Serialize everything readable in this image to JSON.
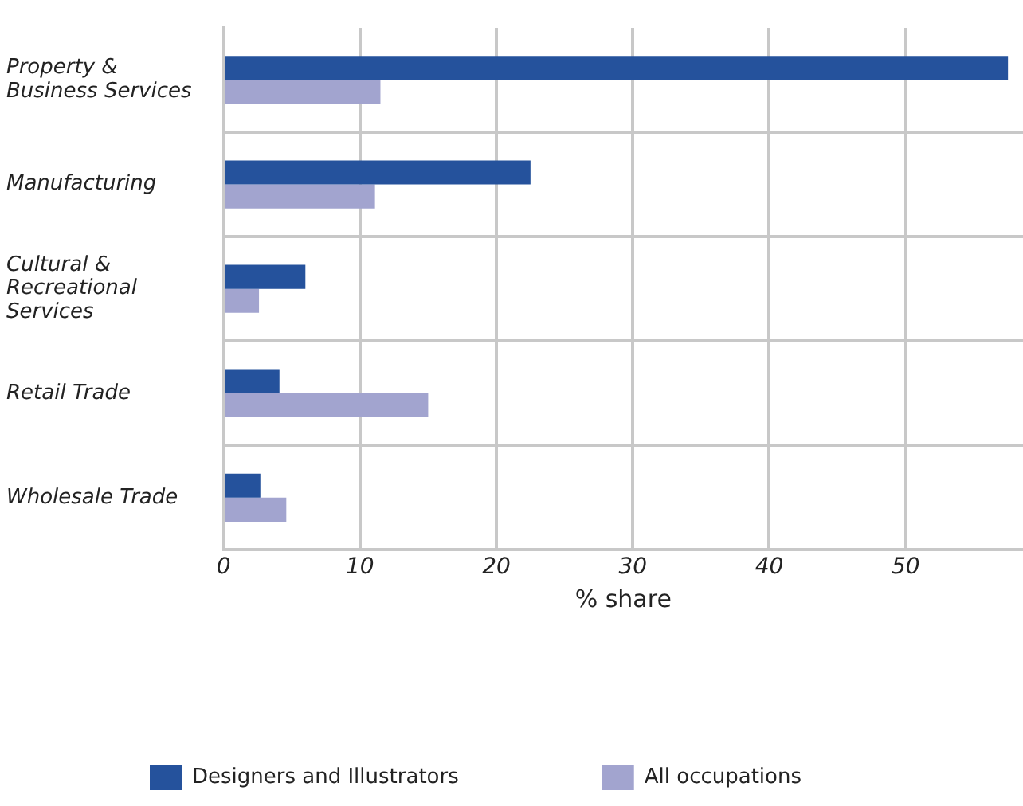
{
  "chart_data": {
    "type": "bar",
    "orientation": "horizontal",
    "xlabel": "% share",
    "categories": [
      "Property & Business Services",
      "Manufacturing",
      "Cultural & Recreational Services",
      "Retail Trade",
      "Wholesale Trade"
    ],
    "series": [
      {
        "name": "Designers and Illustrators",
        "color": "#25529c",
        "values": [
          57.5,
          22.5,
          6.0,
          4.1,
          2.7
        ]
      },
      {
        "name": "All occupations",
        "color": "#a2a4cf",
        "values": [
          11.5,
          11.1,
          2.6,
          15.0,
          4.6
        ]
      }
    ],
    "xlim": [
      0,
      58.6
    ],
    "xticks": [
      0,
      10,
      20,
      30,
      40,
      50
    ],
    "grid": true,
    "legend": "bottom"
  }
}
